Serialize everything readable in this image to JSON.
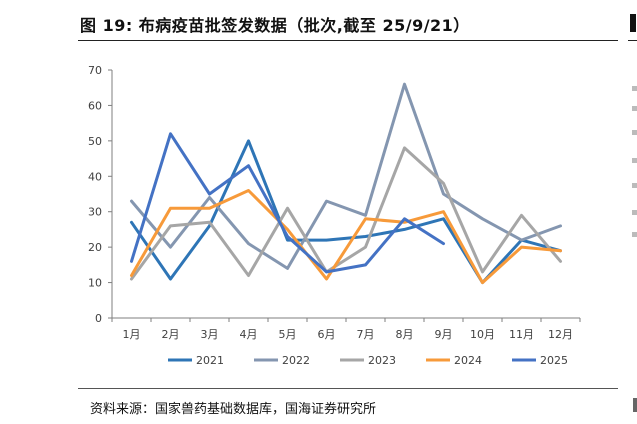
{
  "page": {
    "title": "图 19: 布病疫苗批签发数据（批次,截至 25/9/21）",
    "source": "资料来源：国家兽药基础数据库，国海证券研究所"
  },
  "chart_data": {
    "type": "line",
    "title": "图 19: 布病疫苗批签发数据（批次,截至 25/9/21）",
    "xlabel": "",
    "ylabel": "",
    "ylim": [
      0,
      70
    ],
    "yticks": [
      0,
      10,
      20,
      30,
      40,
      50,
      60,
      70
    ],
    "grid": false,
    "legend_position": "bottom",
    "categories": [
      "1月",
      "2月",
      "3月",
      "4月",
      "5月",
      "6月",
      "7月",
      "8月",
      "9月",
      "10月",
      "11月",
      "12月"
    ],
    "series": [
      {
        "name": "2021",
        "color": "#2E75B6",
        "values": [
          27,
          11,
          26,
          50,
          22,
          22,
          23,
          25,
          28,
          10,
          22,
          19
        ]
      },
      {
        "name": "2022",
        "color": "#8496B0",
        "values": [
          33,
          20,
          34,
          21,
          14,
          33,
          29,
          66,
          35,
          28,
          22,
          26
        ]
      },
      {
        "name": "2023",
        "color": "#A6A6A6",
        "values": [
          11,
          26,
          27,
          12,
          31,
          13,
          20,
          48,
          38,
          13,
          29,
          16
        ]
      },
      {
        "name": "2024",
        "color": "#F79A3A",
        "values": [
          12,
          31,
          31,
          36,
          25,
          11,
          28,
          27,
          30,
          10,
          20,
          19
        ]
      },
      {
        "name": "2025",
        "color": "#4472C4",
        "values": [
          16,
          52,
          35,
          43,
          23,
          13,
          15,
          28,
          21,
          null,
          null,
          null
        ]
      }
    ]
  }
}
